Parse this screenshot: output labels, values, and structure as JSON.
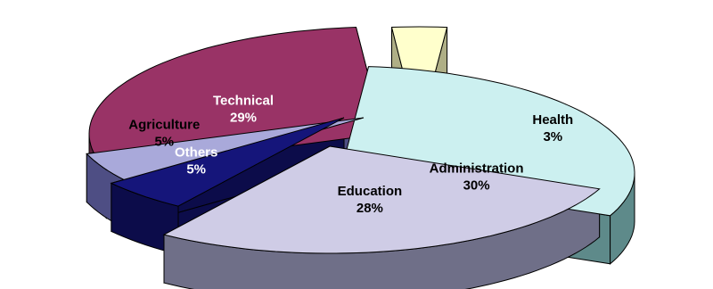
{
  "chart_data": {
    "type": "pie",
    "style": "3d-exploded",
    "slices": [
      {
        "label": "Administration",
        "value": 30,
        "pct_label": "30%",
        "top_color": "#CCF0F0",
        "side_color": "#5E8A8A",
        "text_color": "#000000"
      },
      {
        "label": "Education",
        "value": 28,
        "pct_label": "28%",
        "top_color": "#CFCCE6",
        "side_color": "#6F6F88",
        "text_color": "#000000"
      },
      {
        "label": "Others",
        "value": 5,
        "pct_label": "5%",
        "top_color": "#15157A",
        "side_color": "#0C0C4A",
        "text_color": "#FFFFFF"
      },
      {
        "label": "Agriculture",
        "value": 5,
        "pct_label": "5%",
        "top_color": "#A9A9DA",
        "side_color": "#4E4E84",
        "text_color": "#000000"
      },
      {
        "label": "Technical",
        "value": 29,
        "pct_label": "29%",
        "top_color": "#993366",
        "side_color": "#5A1E3A",
        "text_color": "#FFFFFF"
      },
      {
        "label": "Health",
        "value": 3,
        "pct_label": "3%",
        "top_color": "#FFFFCC",
        "side_color": "#AFAF86",
        "text_color": "#000000"
      }
    ],
    "legend": "none"
  }
}
